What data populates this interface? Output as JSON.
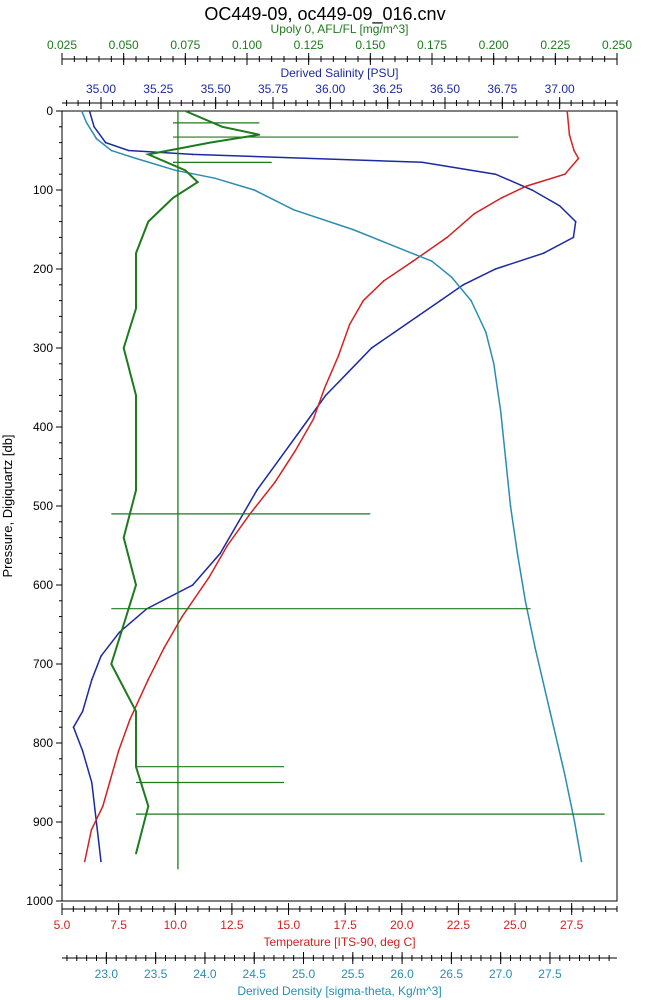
{
  "title": "OC449-09, oc449-09_016.cnv",
  "colors": {
    "fluorescence": "#1e7a1e",
    "salinity": "#1c2aa0",
    "temperature": "#d42020",
    "density": "#2a8db0",
    "axis": "#000000"
  },
  "chart_data": {
    "type": "line",
    "y_axis": {
      "label": "Pressure, Digiquartz [db]",
      "range": [
        0,
        1000
      ],
      "ticks": [
        0,
        100,
        200,
        300,
        400,
        500,
        600,
        700,
        800,
        900,
        1000
      ],
      "inverted": true
    },
    "x_axes": [
      {
        "id": "fluorescence",
        "label": "Upoly 0, AFL/FL [mg/m^3]",
        "position": "top-outer",
        "range": [
          0.025,
          0.25
        ],
        "ticks": [
          "0.025",
          "0.050",
          "0.075",
          "0.100",
          "0.125",
          "0.150",
          "0.175",
          "0.200",
          "0.225",
          "0.250"
        ]
      },
      {
        "id": "salinity",
        "label": "Derived Salinity [PSU]",
        "position": "top-inner",
        "range": [
          34.83,
          37.25
        ],
        "ticks": [
          "35.00",
          "35.25",
          "35.50",
          "35.75",
          "36.00",
          "36.25",
          "36.50",
          "36.75",
          "37.00"
        ]
      },
      {
        "id": "temperature",
        "label": "Temperature [ITS-90, deg C]",
        "position": "bottom-inner",
        "range": [
          5.0,
          29.5
        ],
        "ticks": [
          "5.0",
          "7.5",
          "10.0",
          "12.5",
          "15.0",
          "17.5",
          "20.0",
          "22.5",
          "25.0",
          "27.5"
        ]
      },
      {
        "id": "density",
        "label": "Derived Density [sigma-theta, Kg/m^3]",
        "position": "bottom-outer",
        "range": [
          22.55,
          28.18
        ],
        "ticks": [
          "23.0",
          "23.5",
          "24.0",
          "24.5",
          "25.0",
          "25.5",
          "26.0",
          "26.5",
          "27.0",
          "27.5"
        ]
      }
    ],
    "series": [
      {
        "axis": "salinity",
        "points": [
          [
            34.95,
            0
          ],
          [
            34.97,
            20
          ],
          [
            35.02,
            40
          ],
          [
            35.12,
            50
          ],
          [
            35.4,
            55
          ],
          [
            36.4,
            65
          ],
          [
            36.72,
            80
          ],
          [
            36.88,
            100
          ],
          [
            37.0,
            120
          ],
          [
            37.07,
            140
          ],
          [
            37.06,
            160
          ],
          [
            36.93,
            180
          ],
          [
            36.72,
            200
          ],
          [
            36.58,
            220
          ],
          [
            36.48,
            240
          ],
          [
            36.38,
            260
          ],
          [
            36.28,
            280
          ],
          [
            36.18,
            300
          ],
          [
            36.08,
            330
          ],
          [
            35.98,
            360
          ],
          [
            35.88,
            400
          ],
          [
            35.78,
            440
          ],
          [
            35.68,
            480
          ],
          [
            35.6,
            520
          ],
          [
            35.52,
            560
          ],
          [
            35.4,
            600
          ],
          [
            35.2,
            630
          ],
          [
            35.08,
            660
          ],
          [
            35.0,
            690
          ],
          [
            34.96,
            720
          ],
          [
            34.92,
            760
          ],
          [
            34.88,
            780
          ],
          [
            34.92,
            810
          ],
          [
            34.96,
            850
          ],
          [
            34.98,
            900
          ],
          [
            35.0,
            950
          ]
        ]
      },
      {
        "axis": "temperature",
        "points": [
          [
            27.3,
            0
          ],
          [
            27.4,
            30
          ],
          [
            27.6,
            50
          ],
          [
            27.8,
            60
          ],
          [
            27.2,
            80
          ],
          [
            25.5,
            95
          ],
          [
            24.4,
            110
          ],
          [
            23.2,
            130
          ],
          [
            22.0,
            160
          ],
          [
            20.5,
            190
          ],
          [
            19.2,
            215
          ],
          [
            18.3,
            240
          ],
          [
            17.7,
            270
          ],
          [
            17.2,
            310
          ],
          [
            16.6,
            350
          ],
          [
            16.1,
            390
          ],
          [
            15.3,
            430
          ],
          [
            14.4,
            470
          ],
          [
            13.3,
            510
          ],
          [
            12.3,
            550
          ],
          [
            11.5,
            590
          ],
          [
            10.3,
            640
          ],
          [
            9.5,
            680
          ],
          [
            8.8,
            720
          ],
          [
            8.0,
            770
          ],
          [
            7.5,
            810
          ],
          [
            7.1,
            850
          ],
          [
            6.8,
            880
          ],
          [
            6.3,
            910
          ],
          [
            6.0,
            950
          ]
        ]
      },
      {
        "axis": "density",
        "points": [
          [
            22.75,
            0
          ],
          [
            22.8,
            15
          ],
          [
            22.9,
            35
          ],
          [
            23.05,
            50
          ],
          [
            23.3,
            60
          ],
          [
            23.7,
            75
          ],
          [
            24.1,
            85
          ],
          [
            24.5,
            100
          ],
          [
            24.9,
            125
          ],
          [
            25.5,
            150
          ],
          [
            26.0,
            175
          ],
          [
            26.3,
            190
          ],
          [
            26.5,
            210
          ],
          [
            26.7,
            240
          ],
          [
            26.85,
            280
          ],
          [
            26.93,
            320
          ],
          [
            27.0,
            380
          ],
          [
            27.05,
            440
          ],
          [
            27.1,
            500
          ],
          [
            27.17,
            560
          ],
          [
            27.25,
            620
          ],
          [
            27.35,
            680
          ],
          [
            27.5,
            760
          ],
          [
            27.65,
            840
          ],
          [
            27.75,
            900
          ],
          [
            27.82,
            950
          ]
        ]
      },
      {
        "axis": "fluorescence",
        "points": [
          [
            0.075,
            0
          ],
          [
            0.09,
            20
          ],
          [
            0.105,
            30
          ],
          [
            0.085,
            40
          ],
          [
            0.06,
            55
          ],
          [
            0.075,
            75
          ],
          [
            0.08,
            90
          ],
          [
            0.07,
            110
          ],
          [
            0.06,
            140
          ],
          [
            0.055,
            180
          ],
          [
            0.055,
            250
          ],
          [
            0.05,
            300
          ],
          [
            0.055,
            360
          ],
          [
            0.055,
            420
          ],
          [
            0.055,
            480
          ],
          [
            0.05,
            540
          ],
          [
            0.055,
            600
          ],
          [
            0.05,
            650
          ],
          [
            0.045,
            700
          ],
          [
            0.055,
            760
          ],
          [
            0.055,
            830
          ],
          [
            0.06,
            880
          ],
          [
            0.055,
            940
          ]
        ],
        "spikes": [
          [
            0.105,
            15,
            0.07
          ],
          [
            0.21,
            33,
            0.07
          ],
          [
            0.11,
            65,
            0.07
          ],
          [
            0.15,
            510,
            0.045
          ],
          [
            0.215,
            630,
            0.045
          ],
          [
            0.115,
            830,
            0.055
          ],
          [
            0.115,
            850,
            0.055
          ],
          [
            0.245,
            890,
            0.055
          ]
        ],
        "reference_line": 0.072
      }
    ]
  }
}
